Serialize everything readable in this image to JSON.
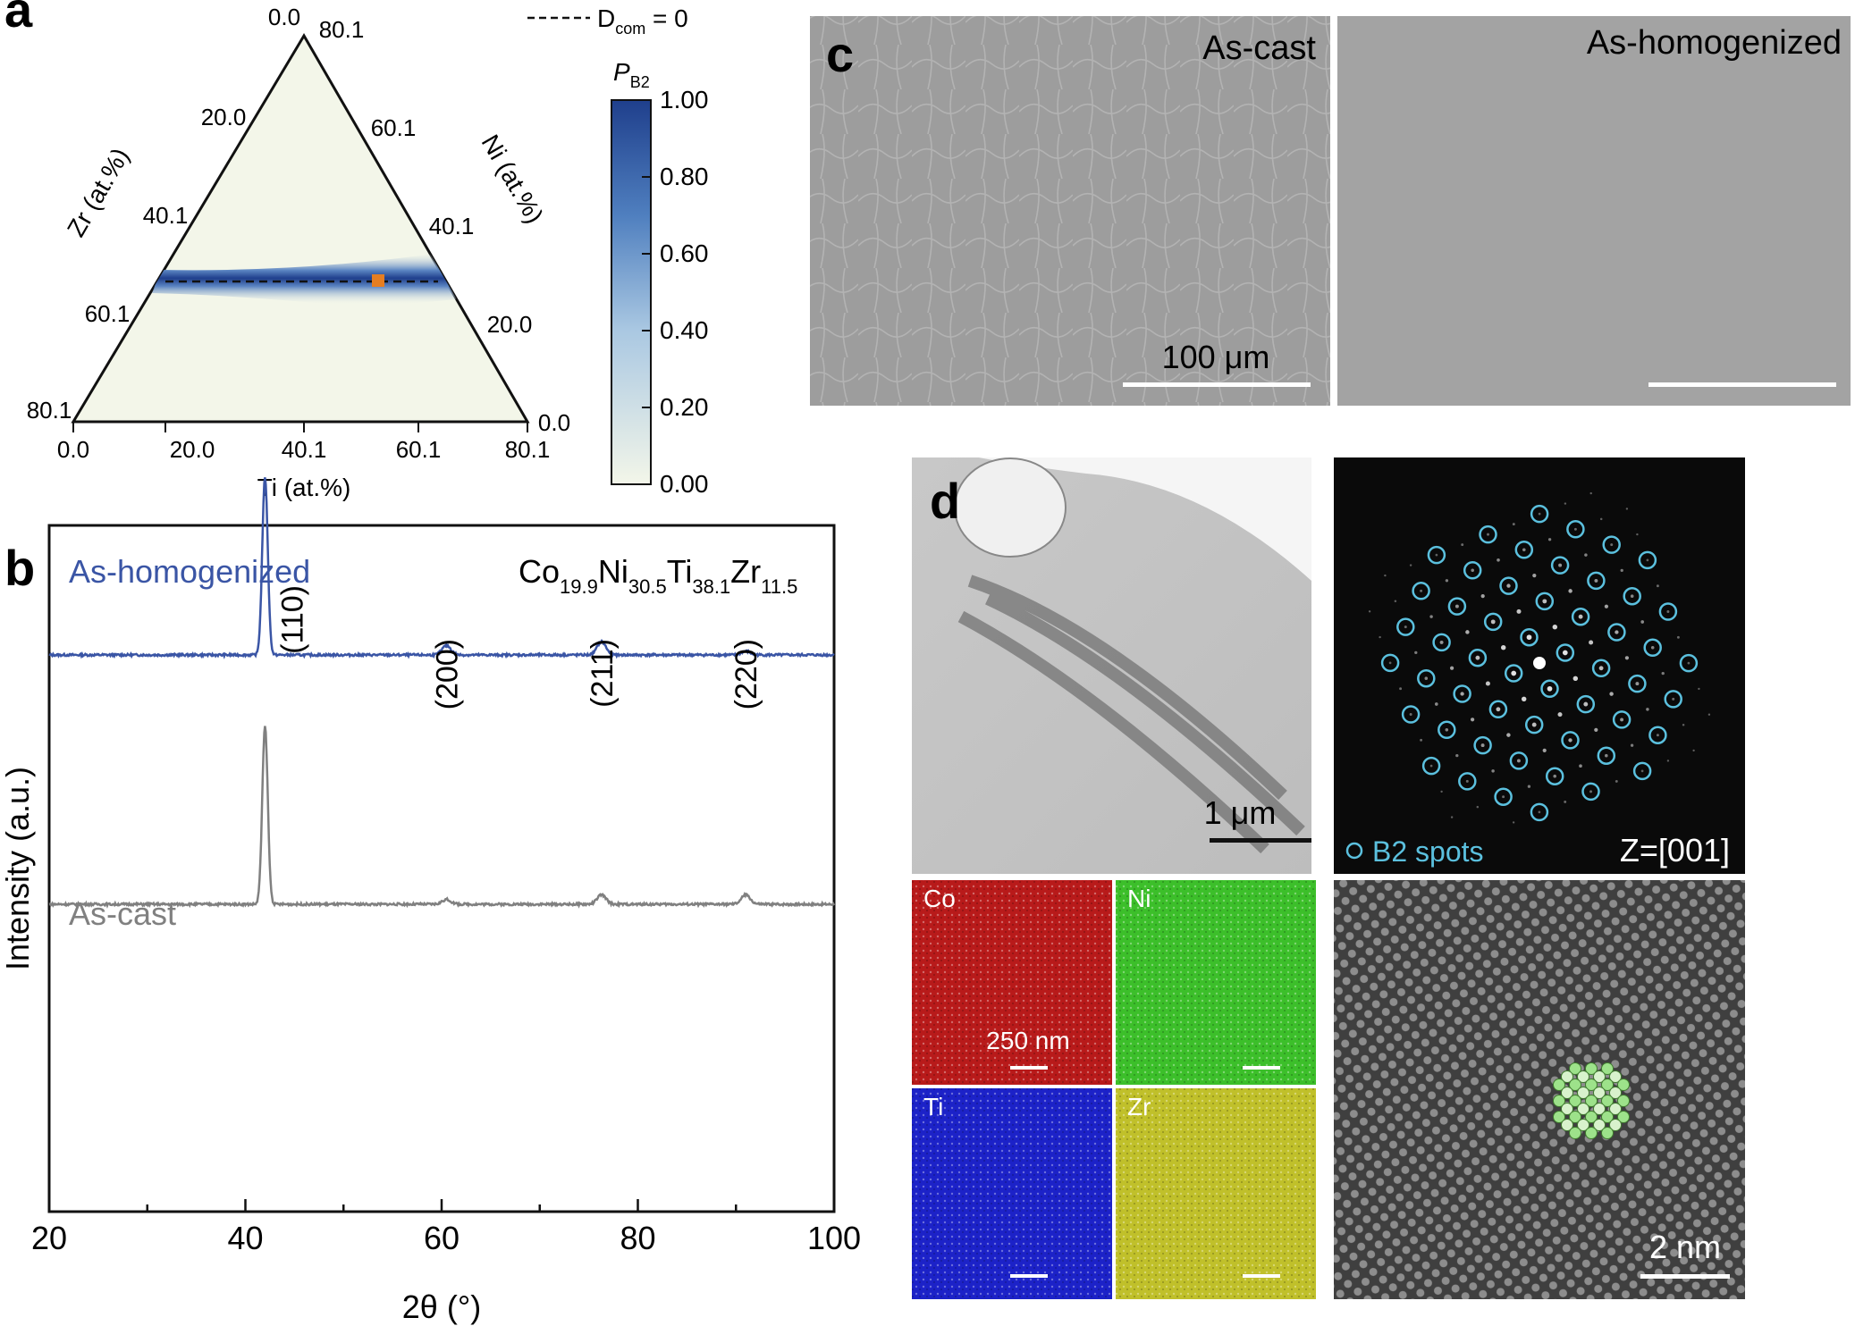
{
  "panels": {
    "a": {
      "label": "a",
      "legend_text": "D",
      "legend_sub": "com",
      "legend_eq": " = 0",
      "colorbar_title": "P",
      "colorbar_title_sub": "B2",
      "colorbar_ticks": [
        "1.00",
        "0.80",
        "0.60",
        "0.40",
        "0.20",
        "0.00"
      ],
      "ti_axis_label": "Ti (at.%)",
      "zr_axis_label": "Zr (at.%)",
      "ni_axis_label": "Ni (at.%)",
      "bottom_ticks": [
        "0.0",
        "20.0",
        "40.1",
        "60.1",
        "80.1"
      ],
      "left_ticks": [
        "0.0",
        "20.0",
        "40.1",
        "60.1",
        "80.1"
      ],
      "right_ticks": [
        "80.1",
        "60.1",
        "40.1",
        "20.0",
        "0.0"
      ]
    },
    "b": {
      "label": "b",
      "homog_label": "As-homogenized",
      "cast_label": "As-cast",
      "composition": [
        {
          "el": "Co",
          "sub": "19.9"
        },
        {
          "el": "Ni",
          "sub": "30.5"
        },
        {
          "el": "Ti",
          "sub": "38.1"
        },
        {
          "el": "Zr",
          "sub": "11.5"
        }
      ]
    },
    "c": {
      "label": "c",
      "left_title": "As-cast",
      "right_title": "As-homogenized",
      "scale_label": "100 μm"
    },
    "d": {
      "label": "d",
      "bf_scale": "1 μm",
      "saed_legend": "B2 spots",
      "zone_axis": "Z=[001]",
      "eds_scale": "250 nm",
      "hr_scale": "2 nm",
      "eds_maps": [
        {
          "element": "Co",
          "color": "#b81a1a"
        },
        {
          "element": "Ni",
          "color": "#3cbf2a"
        },
        {
          "element": "Ti",
          "color": "#1c22c8"
        },
        {
          "element": "Zr",
          "color": "#c0c02a"
        }
      ]
    }
  },
  "chart_data": {
    "type": "line",
    "xlabel": "2θ (°)",
    "ylabel": "Intensity (a.u.)",
    "xlim": [
      20,
      100
    ],
    "xticks": [
      20,
      40,
      60,
      80,
      100
    ],
    "peaks_labeled": [
      {
        "label": "(110)",
        "x": 42.0
      },
      {
        "label": "(200)",
        "x": 60.5
      },
      {
        "label": "(211)",
        "x": 76.3
      },
      {
        "label": "(220)",
        "x": 91.0
      }
    ],
    "series": [
      {
        "name": "As-homogenized",
        "color": "#3a55a5",
        "peaks": [
          {
            "x": 42.0,
            "h": 0.95
          },
          {
            "x": 60.5,
            "h": 0.05
          },
          {
            "x": 76.3,
            "h": 0.07
          },
          {
            "x": 91.0,
            "h": 0.02
          }
        ]
      },
      {
        "name": "As-cast",
        "color": "#808080",
        "peaks": [
          {
            "x": 42.0,
            "h": 0.95
          },
          {
            "x": 60.5,
            "h": 0.025
          },
          {
            "x": 76.3,
            "h": 0.05
          },
          {
            "x": 91.0,
            "h": 0.05
          }
        ]
      }
    ]
  }
}
